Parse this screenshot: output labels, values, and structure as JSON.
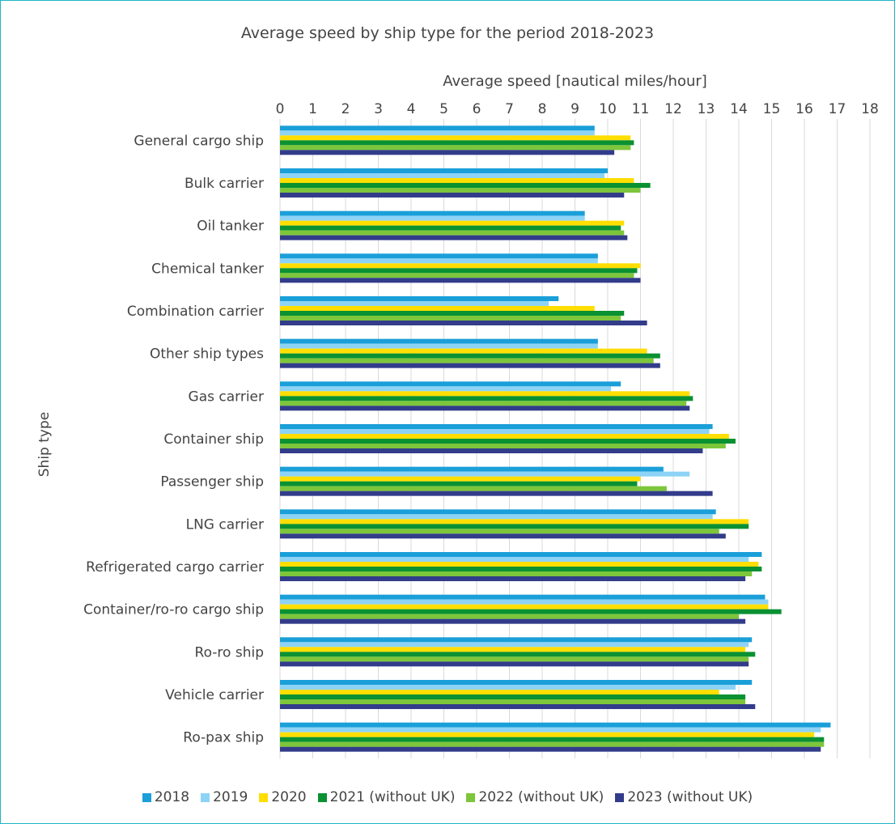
{
  "chart_data": {
    "type": "bar",
    "orientation": "horizontal",
    "title": "Average speed by ship type for the period 2018-2023",
    "xlabel": "Average speed [nautical miles/hour]",
    "ylabel": "Ship type",
    "xlim": [
      0,
      18
    ],
    "xticks": [
      "0",
      "1",
      "2",
      "3",
      "4",
      "5",
      "6",
      "7",
      "8",
      "9",
      "10",
      "11",
      "12",
      "13",
      "14",
      "15",
      "16",
      "17",
      "18"
    ],
    "grid": true,
    "legend_position": "bottom",
    "categories": [
      "General cargo ship",
      "Bulk carrier",
      "Oil tanker",
      "Chemical tanker",
      "Combination carrier",
      "Other ship types",
      "Gas carrier",
      "Container ship",
      "Passenger ship",
      "LNG carrier",
      "Refrigerated cargo carrier",
      "Container/ro-ro cargo ship",
      "Ro-ro ship",
      "Vehicle carrier",
      "Ro-pax ship"
    ],
    "series": [
      {
        "name": "2018",
        "color": "#1a9fd9",
        "values": [
          9.6,
          10.0,
          9.3,
          9.7,
          8.5,
          9.7,
          10.4,
          13.2,
          11.7,
          13.3,
          14.7,
          14.8,
          14.4,
          14.4,
          16.8
        ]
      },
      {
        "name": "2019",
        "color": "#8dd3f6",
        "values": [
          9.6,
          9.9,
          9.3,
          9.7,
          8.2,
          9.7,
          10.1,
          13.1,
          12.5,
          13.2,
          14.3,
          14.9,
          14.3,
          13.9,
          16.5
        ]
      },
      {
        "name": "2020",
        "color": "#ffde00",
        "values": [
          10.7,
          10.8,
          10.5,
          11.0,
          9.6,
          11.2,
          12.5,
          13.7,
          11.0,
          14.3,
          14.6,
          14.9,
          14.2,
          13.4,
          16.3
        ]
      },
      {
        "name": "2021 (without UK)",
        "color": "#0a9132",
        "values": [
          10.8,
          11.3,
          10.4,
          10.9,
          10.5,
          11.6,
          12.6,
          13.9,
          10.9,
          14.3,
          14.7,
          15.3,
          14.5,
          14.2,
          16.6
        ]
      },
      {
        "name": "2022 (without UK)",
        "color": "#7dc63b",
        "values": [
          10.7,
          11.0,
          10.5,
          10.8,
          10.4,
          11.4,
          12.4,
          13.6,
          11.8,
          13.4,
          14.4,
          14.0,
          14.3,
          14.2,
          16.6
        ]
      },
      {
        "name": "2023 (without UK)",
        "color": "#323c8a",
        "values": [
          10.2,
          10.5,
          10.6,
          11.0,
          11.2,
          11.6,
          12.5,
          12.9,
          13.2,
          13.6,
          14.2,
          14.2,
          14.3,
          14.5,
          16.5
        ]
      }
    ]
  }
}
